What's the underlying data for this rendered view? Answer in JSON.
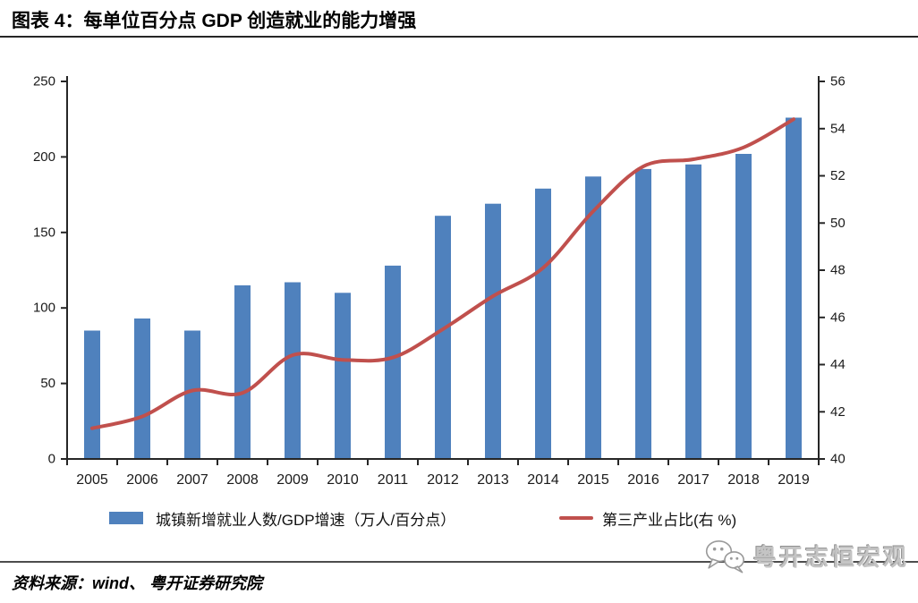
{
  "page": {
    "title": "图表 4：每单位百分点 GDP 创造就业的能力增强"
  },
  "chart_data": {
    "type": "combo_bar_line",
    "title": "每单位百分点 GDP 创造就业的能力增强",
    "categories": [
      "2005",
      "2006",
      "2007",
      "2008",
      "2009",
      "2010",
      "2011",
      "2012",
      "2013",
      "2014",
      "2015",
      "2016",
      "2017",
      "2018",
      "2019"
    ],
    "series": [
      {
        "name": "城镇新增就业人数/GDP增速（万人/百分点）",
        "type": "bar",
        "axis": "left",
        "color": "#4f81bd",
        "values": [
          85,
          93,
          85,
          115,
          117,
          110,
          128,
          161,
          169,
          179,
          187,
          192,
          195,
          202,
          226
        ]
      },
      {
        "name": "第三产业占比(右 %)",
        "type": "line",
        "axis": "right",
        "color": "#c0504d",
        "values": [
          41.3,
          41.8,
          42.9,
          42.8,
          44.4,
          44.2,
          44.3,
          45.5,
          46.9,
          48.1,
          50.5,
          52.4,
          52.7,
          53.2,
          54.4
        ]
      }
    ],
    "left_axis": {
      "min": 0,
      "max": 250,
      "step": 50,
      "ticks": [
        0,
        50,
        100,
        150,
        200,
        250
      ]
    },
    "right_axis": {
      "min": 40,
      "max": 56,
      "step": 2,
      "ticks": [
        40,
        42,
        44,
        46,
        48,
        50,
        52,
        54,
        56
      ]
    },
    "legend_position": "bottom",
    "grid": false
  },
  "footer": {
    "source": "资料来源：wind、 粤开证券研究院"
  },
  "watermark": {
    "label": "粤开志恒宏观"
  },
  "colors": {
    "bar": "#4f81bd",
    "line": "#c0504d",
    "axis": "#262626",
    "tick_label": "#1a1a1a",
    "title_rule": "#262626",
    "footer_rule": "#4d4d4d",
    "watermark_gray": "#9a9a9a"
  }
}
